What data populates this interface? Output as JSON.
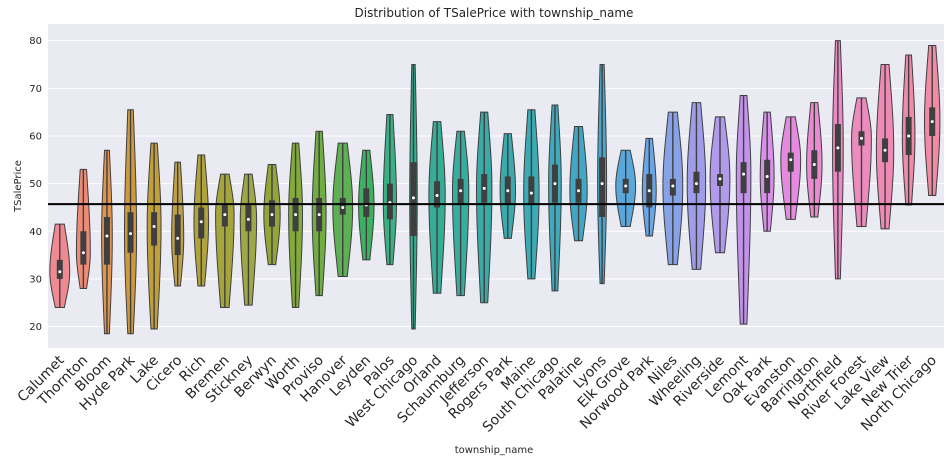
{
  "chart_data": {
    "type": "violin",
    "title": "Distribution of TSalePrice with township_name",
    "xlabel": "township_name",
    "ylabel": "TSalePrice",
    "ylim": [
      15.5,
      83.5
    ],
    "yticks": [
      20,
      30,
      40,
      50,
      60,
      70,
      80
    ],
    "grid": true,
    "reference_line": 45.7,
    "categories": [
      "Calumet",
      "Thornton",
      "Bloom",
      "Hyde Park",
      "Lake",
      "Cicero",
      "Rich",
      "Bremen",
      "Stickney",
      "Berwyn",
      "Worth",
      "Proviso",
      "Hanover",
      "Leyden",
      "Palos",
      "West Chicago",
      "Orland",
      "Schaumburg",
      "Jefferson",
      "Rogers Park",
      "Maine",
      "South Chicago",
      "Palatine",
      "Lyons",
      "Elk Grove",
      "Norwood Park",
      "Niles",
      "Wheeling",
      "Riverside",
      "Lemont",
      "Oak Park",
      "Evanston",
      "Barrington",
      "Northfield",
      "River Forest",
      "Lake View",
      "New Trier",
      "North Chicago"
    ],
    "colors": [
      "#f08a92",
      "#ee8b76",
      "#df9452",
      "#cf9a3e",
      "#c19f3b",
      "#bea14a",
      "#b0a23c",
      "#a4a63c",
      "#9ea845",
      "#93a53a",
      "#82ab3b",
      "#72ad43",
      "#5db053",
      "#3db162",
      "#3bb087",
      "#35ae91",
      "#37ad98",
      "#38ac9e",
      "#39aaa5",
      "#3ba9ad",
      "#3dabb5",
      "#3eaabc",
      "#42a7c5",
      "#49a7cf",
      "#5aa7dc",
      "#6aa5e6",
      "#88a2e7",
      "#9f9cea",
      "#b19aeb",
      "#c392ea",
      "#d88fe9",
      "#e48be0",
      "#ea8ad1",
      "#eb8ac6",
      "#ec8bbe",
      "#ee8ab5",
      "#ef8aad",
      "#f08aa5"
    ],
    "stats": [
      {
        "min": 24.0,
        "q1": 30.0,
        "median": 31.5,
        "q3": 34.0,
        "max": 41.5
      },
      {
        "min": 28.0,
        "q1": 33.0,
        "median": 35.5,
        "q3": 40.0,
        "max": 53.0
      },
      {
        "min": 18.5,
        "q1": 33.0,
        "median": 39.0,
        "q3": 43.0,
        "max": 57.0
      },
      {
        "min": 18.5,
        "q1": 35.5,
        "median": 39.5,
        "q3": 44.0,
        "max": 65.5
      },
      {
        "min": 19.5,
        "q1": 37.0,
        "median": 41.0,
        "q3": 44.0,
        "max": 58.5
      },
      {
        "min": 28.5,
        "q1": 35.0,
        "median": 38.5,
        "q3": 43.5,
        "max": 54.5
      },
      {
        "min": 28.5,
        "q1": 38.5,
        "median": 42.0,
        "q3": 45.0,
        "max": 56.0
      },
      {
        "min": 24.0,
        "q1": 41.0,
        "median": 43.5,
        "q3": 45.5,
        "max": 52.0
      },
      {
        "min": 24.5,
        "q1": 40.0,
        "median": 42.5,
        "q3": 45.5,
        "max": 52.0
      },
      {
        "min": 33.0,
        "q1": 41.0,
        "median": 43.5,
        "q3": 46.5,
        "max": 54.0
      },
      {
        "min": 24.0,
        "q1": 40.0,
        "median": 43.5,
        "q3": 47.0,
        "max": 58.5
      },
      {
        "min": 26.5,
        "q1": 40.0,
        "median": 43.5,
        "q3": 47.0,
        "max": 61.0
      },
      {
        "min": 30.5,
        "q1": 43.5,
        "median": 45.0,
        "q3": 47.0,
        "max": 58.5
      },
      {
        "min": 34.0,
        "q1": 43.0,
        "median": 45.5,
        "q3": 49.0,
        "max": 57.0
      },
      {
        "min": 33.0,
        "q1": 42.5,
        "median": 46.0,
        "q3": 50.0,
        "max": 64.5
      },
      {
        "min": 19.5,
        "q1": 39.0,
        "median": 47.0,
        "q3": 54.5,
        "max": 75.0
      },
      {
        "min": 27.0,
        "q1": 45.0,
        "median": 47.5,
        "q3": 50.5,
        "max": 63.0
      },
      {
        "min": 26.5,
        "q1": 45.5,
        "median": 48.5,
        "q3": 51.0,
        "max": 61.0
      },
      {
        "min": 25.0,
        "q1": 46.0,
        "median": 49.0,
        "q3": 52.0,
        "max": 65.0
      },
      {
        "min": 38.5,
        "q1": 45.5,
        "median": 48.5,
        "q3": 51.5,
        "max": 60.5
      },
      {
        "min": 30.0,
        "q1": 45.5,
        "median": 48.0,
        "q3": 51.5,
        "max": 65.5
      },
      {
        "min": 27.5,
        "q1": 46.0,
        "median": 50.0,
        "q3": 54.0,
        "max": 66.5
      },
      {
        "min": 38.0,
        "q1": 46.0,
        "median": 48.5,
        "q3": 51.0,
        "max": 62.0
      },
      {
        "min": 29.0,
        "q1": 43.0,
        "median": 50.0,
        "q3": 55.5,
        "max": 75.0
      },
      {
        "min": 41.0,
        "q1": 48.0,
        "median": 49.5,
        "q3": 51.0,
        "max": 57.0
      },
      {
        "min": 39.0,
        "q1": 45.0,
        "median": 48.5,
        "q3": 52.0,
        "max": 59.5
      },
      {
        "min": 33.0,
        "q1": 47.5,
        "median": 49.5,
        "q3": 51.0,
        "max": 65.0
      },
      {
        "min": 32.0,
        "q1": 48.0,
        "median": 50.0,
        "q3": 52.5,
        "max": 67.0
      },
      {
        "min": 35.5,
        "q1": 49.5,
        "median": 51.0,
        "q3": 52.0,
        "max": 64.0
      },
      {
        "min": 20.5,
        "q1": 48.0,
        "median": 52.0,
        "q3": 54.5,
        "max": 68.5
      },
      {
        "min": 40.0,
        "q1": 48.0,
        "median": 51.5,
        "q3": 55.0,
        "max": 65.0
      },
      {
        "min": 42.5,
        "q1": 52.5,
        "median": 55.0,
        "q3": 56.5,
        "max": 64.0
      },
      {
        "min": 43.0,
        "q1": 51.0,
        "median": 54.0,
        "q3": 57.0,
        "max": 67.0
      },
      {
        "min": 30.0,
        "q1": 52.5,
        "median": 57.5,
        "q3": 62.5,
        "max": 80.0
      },
      {
        "min": 41.0,
        "q1": 58.0,
        "median": 59.5,
        "q3": 61.0,
        "max": 68.0
      },
      {
        "min": 40.5,
        "q1": 54.5,
        "median": 57.0,
        "q3": 59.5,
        "max": 75.0
      },
      {
        "min": 45.5,
        "q1": 56.0,
        "median": 60.0,
        "q3": 64.0,
        "max": 77.0
      },
      {
        "min": 47.5,
        "q1": 60.0,
        "median": 63.0,
        "q3": 66.0,
        "max": 79.0
      }
    ]
  }
}
